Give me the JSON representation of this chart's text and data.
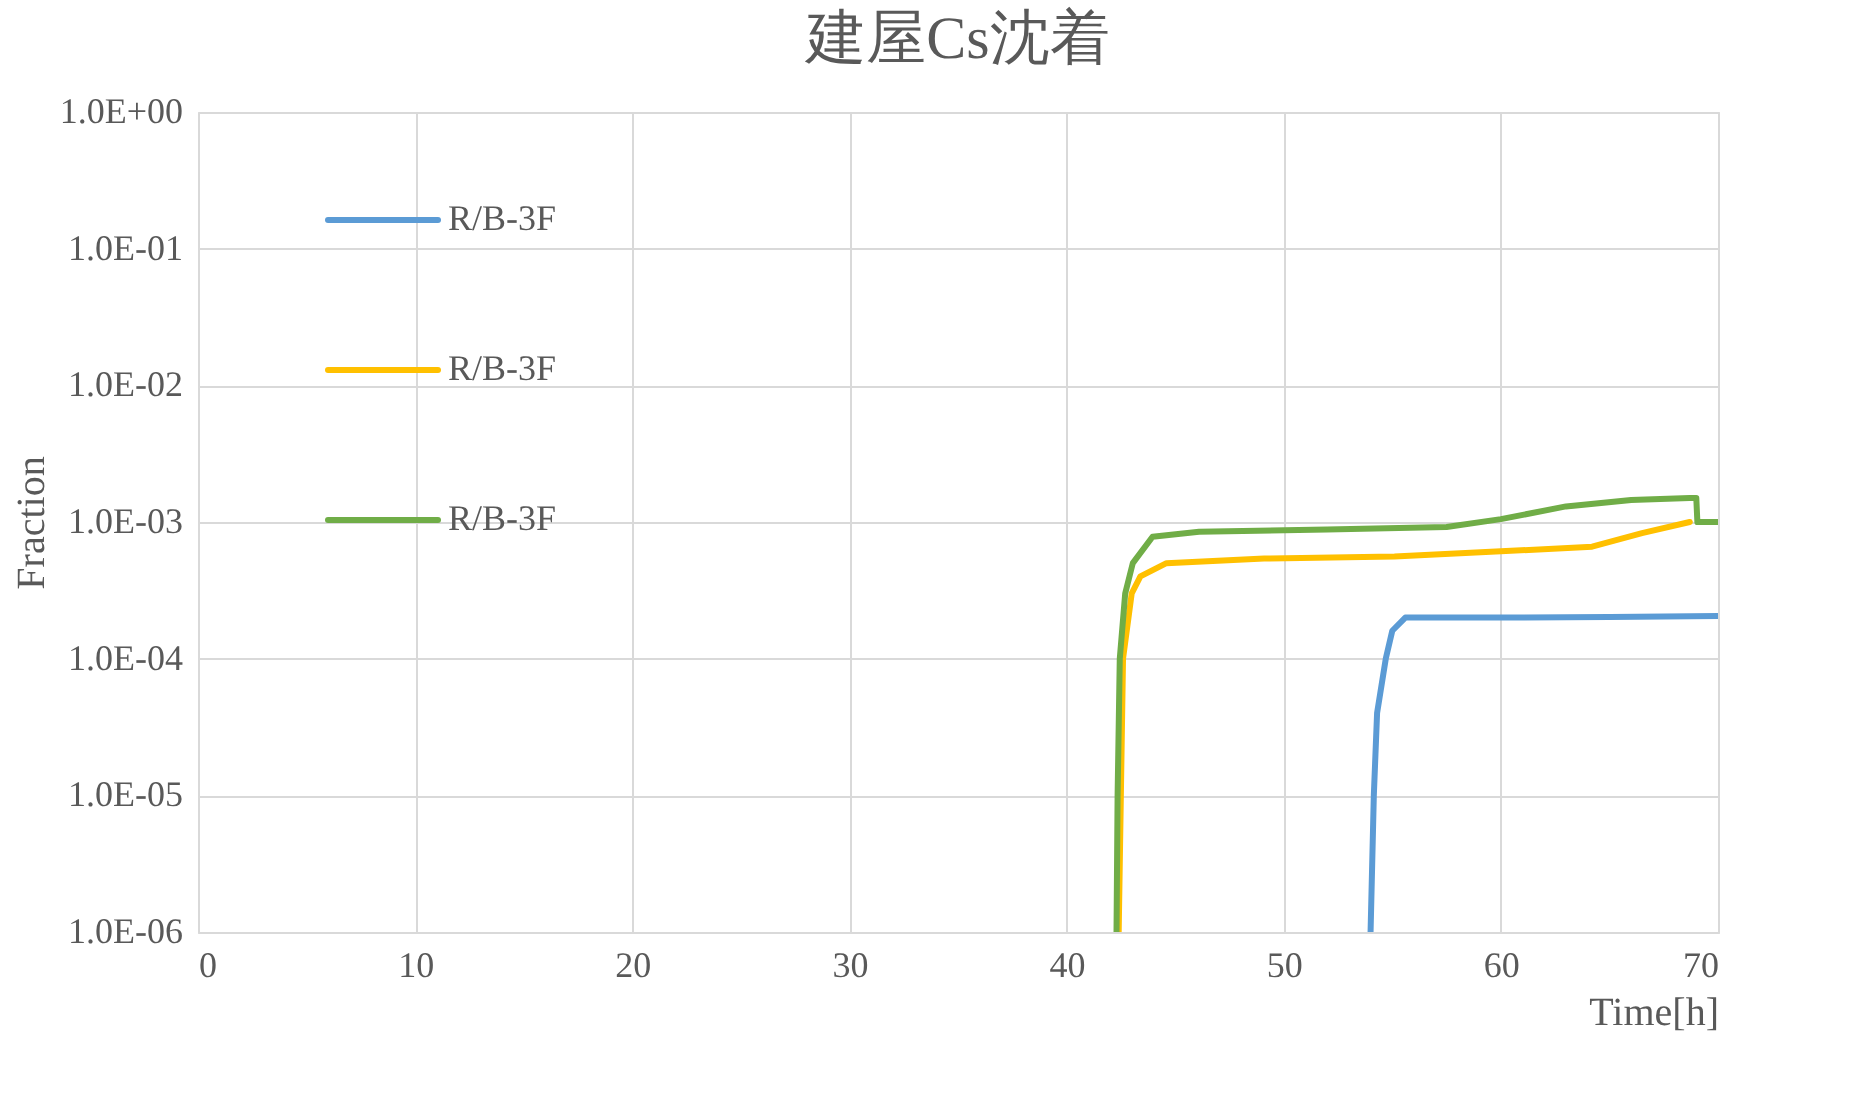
{
  "chart_data": {
    "type": "line",
    "title": "建屋Cs沈着",
    "xlabel": "Time[h]",
    "ylabel": "Fraction",
    "log": true,
    "grid": true,
    "legend": "top left",
    "xlim": [
      0,
      70
    ],
    "xticks": [
      0,
      10,
      20,
      30,
      40,
      50,
      60,
      70
    ],
    "ylim": [
      1e-06,
      1
    ],
    "yticks": [
      {
        "value": 1e-06,
        "label": "1.0E-06"
      },
      {
        "value": 1e-05,
        "label": "1.0E-05"
      },
      {
        "value": 0.0001,
        "label": "1.0E-04"
      },
      {
        "value": 0.001,
        "label": "1.0E-03"
      },
      {
        "value": 0.01,
        "label": "1.0E-02"
      },
      {
        "value": 0.1,
        "label": "1.0E-01"
      },
      {
        "value": 1,
        "label": "1.0E+00"
      }
    ],
    "series": [
      {
        "name": "R/B-3F",
        "color": "#5b9bd5",
        "x": [
          54.0,
          54.15,
          54.3,
          54.7,
          55.0,
          55.6,
          60,
          65,
          70
        ],
        "values": [
          1e-06,
          1e-05,
          4e-05,
          0.0001,
          0.00016,
          0.0002,
          0.0002,
          0.000202,
          0.000205
        ]
      },
      {
        "name": "R/B-3F",
        "color": "#ffc000",
        "x": [
          42.4,
          42.5,
          42.6,
          43.0,
          43.4,
          44.6,
          49.1,
          55.1,
          60,
          64.2,
          66.5,
          68.7
        ],
        "values": [
          1e-06,
          1e-05,
          0.0001,
          0.0003,
          0.0004,
          0.0005,
          0.00054,
          0.00056,
          0.00061,
          0.00066,
          0.00083,
          0.001
        ]
      },
      {
        "name": "R/B-3F",
        "color": "#70ad47",
        "x": [
          42.3,
          42.35,
          42.45,
          42.7,
          43.05,
          43.96,
          46.1,
          52,
          57.5,
          60,
          63.0,
          66,
          68.7,
          69.0,
          69.05,
          70
        ],
        "values": [
          1e-06,
          1e-05,
          0.0001,
          0.0003,
          0.0005,
          0.00078,
          0.00085,
          0.00088,
          0.00092,
          0.00105,
          0.0013,
          0.00145,
          0.0015,
          0.0015,
          0.001,
          0.001
        ]
      }
    ]
  }
}
